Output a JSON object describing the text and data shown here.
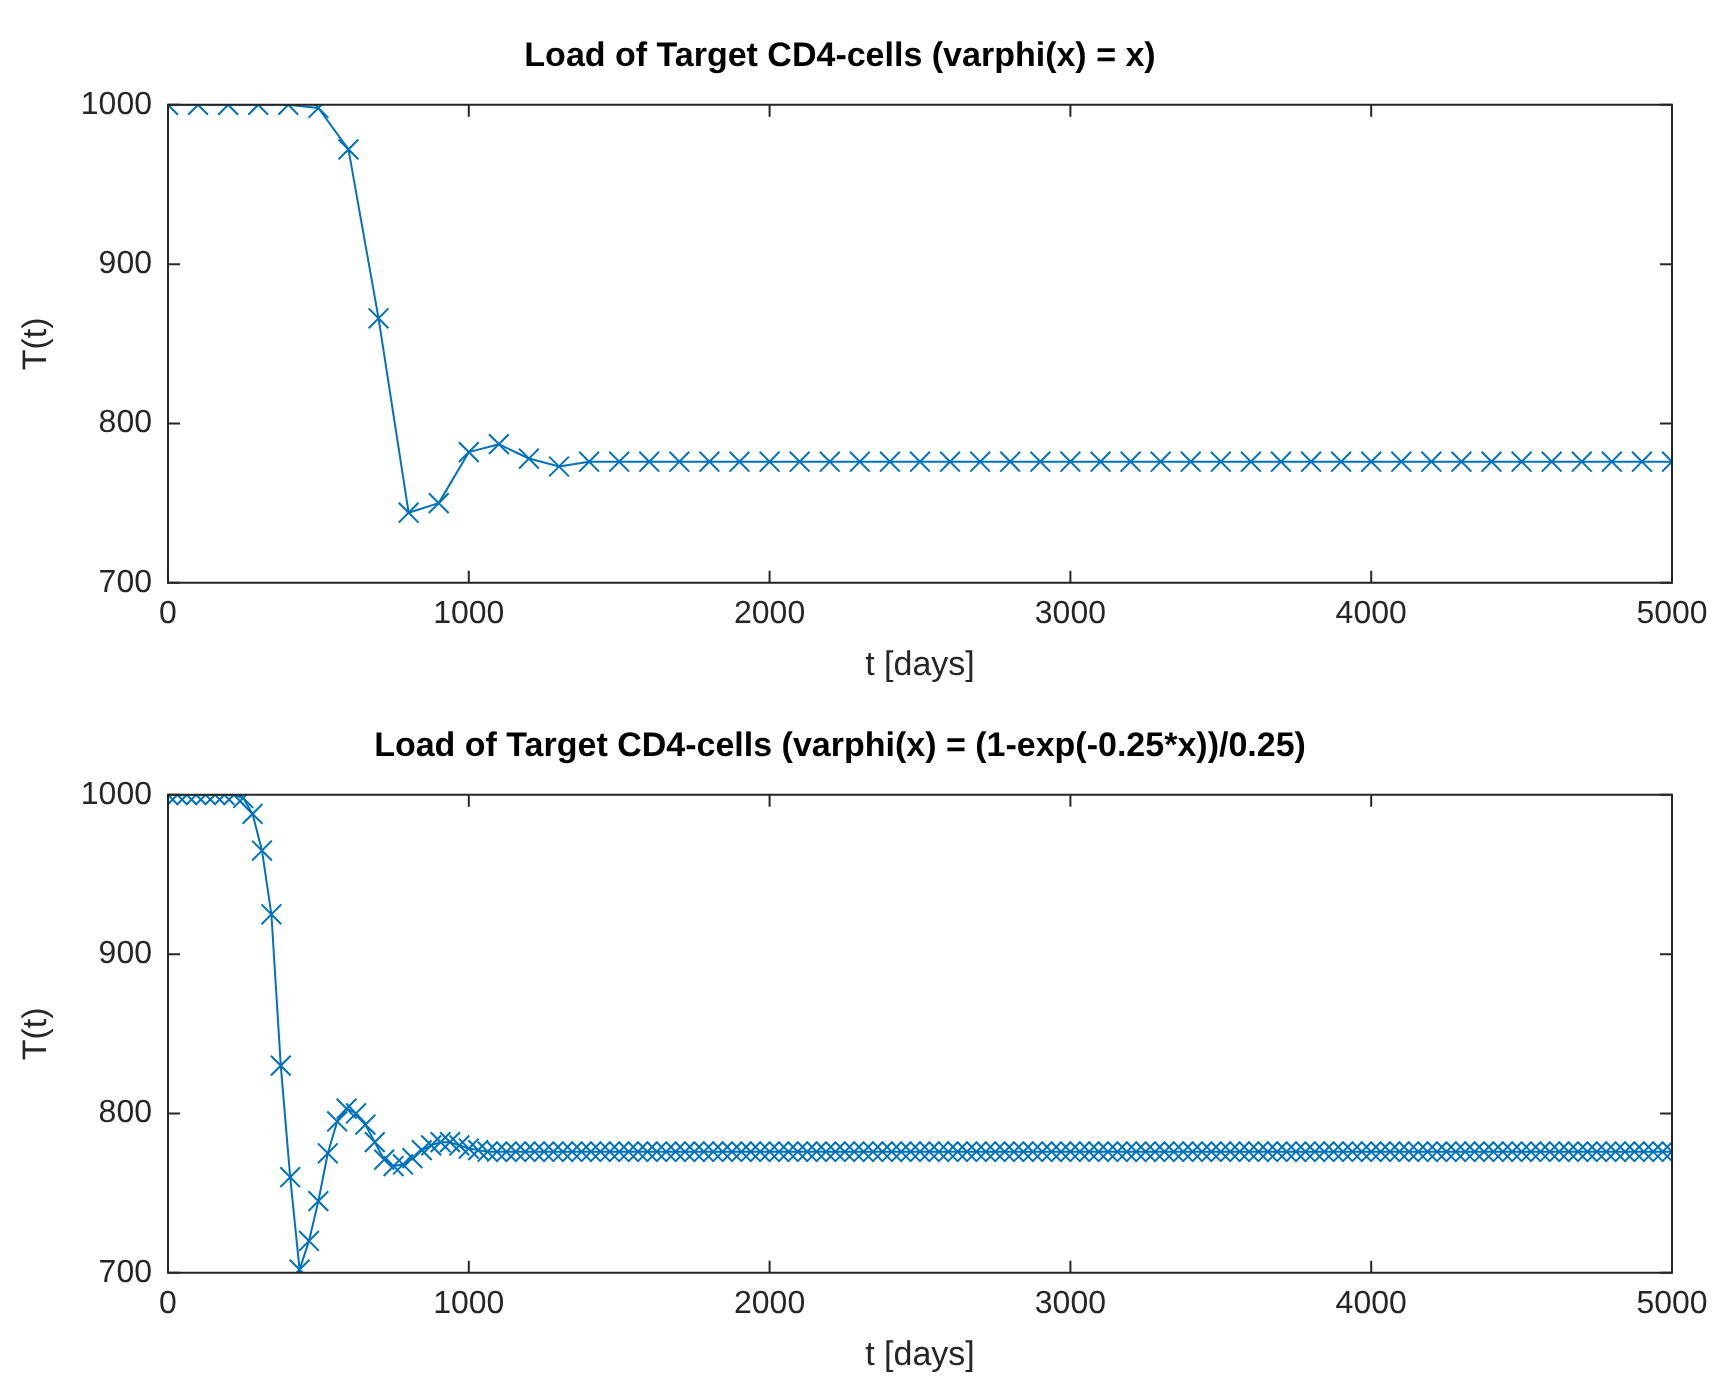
{
  "chart_data": [
    {
      "type": "line",
      "title": "Load of Target CD4-cells (varphi(x) = x)",
      "xlabel": "t [days]",
      "ylabel": "T(t)",
      "marker": "cross",
      "grid": false,
      "legend": false,
      "xlim": [
        0,
        5000
      ],
      "xticks": [
        0,
        1000,
        2000,
        3000,
        4000,
        5000
      ],
      "ylim": [
        700,
        1000
      ],
      "yticks": [
        700,
        800,
        900,
        1000
      ],
      "x": [
        0,
        100,
        200,
        300,
        400,
        500,
        600,
        700,
        800,
        900,
        1000,
        1100,
        1200,
        1300,
        1400,
        1500,
        1600,
        1700,
        1800,
        1900,
        2000,
        2100,
        2200,
        2300,
        2400,
        2500,
        2600,
        2700,
        2800,
        2900,
        3000,
        3100,
        3200,
        3300,
        3400,
        3500,
        3600,
        3700,
        3800,
        3900,
        4000,
        4100,
        4200,
        4300,
        4400,
        4500,
        4600,
        4700,
        4800,
        4900,
        5000
      ],
      "series": [
        {
          "color": "#0072bd",
          "values": [
            1000,
            1000,
            1000,
            1000,
            1000,
            998,
            972,
            866,
            744,
            750,
            782,
            787,
            778,
            773,
            776,
            776,
            776,
            776,
            776,
            776,
            776,
            776,
            776,
            776,
            776,
            776,
            776,
            776,
            776,
            776,
            776,
            776,
            776,
            776,
            776,
            776,
            776,
            776,
            776,
            776,
            776,
            776,
            776,
            776,
            776,
            776,
            776,
            776,
            776,
            776,
            776
          ]
        }
      ]
    },
    {
      "type": "line",
      "title": "Load of Target CD4-cells (varphi(x) = (1-exp(-0.25*x))/0.25)",
      "xlabel": "t [days]",
      "ylabel": "T(t)",
      "marker": "cross",
      "grid": false,
      "legend": false,
      "xlim": [
        0,
        5000
      ],
      "xticks": [
        0,
        1000,
        2000,
        3000,
        4000,
        5000
      ],
      "ylim": [
        700,
        1000
      ],
      "yticks": [
        700,
        800,
        900,
        1000
      ],
      "x": [
        0,
        31.25,
        62.5,
        93.75,
        125,
        156.25,
        187.5,
        218.75,
        250,
        281.25,
        312.5,
        343.75,
        375,
        406.25,
        437.5,
        468.75,
        500,
        531.25,
        562.5,
        593.75,
        625,
        656.25,
        687.5,
        718.75,
        750,
        781.25,
        812.5,
        843.75,
        875,
        906.25,
        937.5,
        968.75,
        1000,
        1031.25,
        1062.5,
        1093.75,
        1125,
        1156.25,
        1187.5,
        1218.75,
        1250,
        1281.25,
        1312.5,
        1343.75,
        1375,
        1406.25,
        1437.5,
        1468.75,
        1500,
        1531.25,
        1562.5,
        1593.75,
        1625,
        1656.25,
        1687.5,
        1718.75,
        1750,
        1781.25,
        1812.5,
        1843.75,
        1875,
        1906.25,
        1937.5,
        1968.75,
        2000,
        2031.25,
        2062.5,
        2093.75,
        2125,
        2156.25,
        2187.5,
        2218.75,
        2250,
        2281.25,
        2312.5,
        2343.75,
        2375,
        2406.25,
        2437.5,
        2468.75,
        2500,
        2531.25,
        2562.5,
        2593.75,
        2625,
        2656.25,
        2687.5,
        2718.75,
        2750,
        2781.25,
        2812.5,
        2843.75,
        2875,
        2906.25,
        2937.5,
        2968.75,
        3000,
        3031.25,
        3062.5,
        3093.75,
        3125,
        3156.25,
        3187.5,
        3218.75,
        3250,
        3281.25,
        3312.5,
        3343.75,
        3375,
        3406.25,
        3437.5,
        3468.75,
        3500,
        3531.25,
        3562.5,
        3593.75,
        3625,
        3656.25,
        3687.5,
        3718.75,
        3750,
        3781.25,
        3812.5,
        3843.75,
        3875,
        3906.25,
        3937.5,
        3968.75,
        4000,
        4031.25,
        4062.5,
        4093.75,
        4125,
        4156.25,
        4187.5,
        4218.75,
        4250,
        4281.25,
        4312.5,
        4343.75,
        4375,
        4406.25,
        4437.5,
        4468.75,
        4500,
        4531.25,
        4562.5,
        4593.75,
        4625,
        4656.25,
        4687.5,
        4718.75,
        4750,
        4781.25,
        4812.5,
        4843.75,
        4875,
        4906.25,
        4937.5,
        4968.75,
        5000
      ],
      "series": [
        {
          "color": "#0072bd",
          "values": [
            1000,
            1000,
            1000,
            1000,
            1000,
            1000,
            1000,
            1000,
            998,
            988,
            965,
            925,
            830,
            760,
            702,
            720,
            745,
            775,
            795,
            803,
            800,
            793,
            782,
            771,
            767,
            768,
            772,
            777,
            780,
            782,
            782,
            780,
            778,
            777,
            776,
            776,
            776,
            776,
            776,
            776,
            776,
            776,
            776,
            776,
            776,
            776,
            776,
            776,
            776,
            776,
            776,
            776,
            776,
            776,
            776,
            776,
            776,
            776,
            776,
            776,
            776,
            776,
            776,
            776,
            776,
            776,
            776,
            776,
            776,
            776,
            776,
            776,
            776,
            776,
            776,
            776,
            776,
            776,
            776,
            776,
            776,
            776,
            776,
            776,
            776,
            776,
            776,
            776,
            776,
            776,
            776,
            776,
            776,
            776,
            776,
            776,
            776,
            776,
            776,
            776,
            776,
            776,
            776,
            776,
            776,
            776,
            776,
            776,
            776,
            776,
            776,
            776,
            776,
            776,
            776,
            776,
            776,
            776,
            776,
            776,
            776,
            776,
            776,
            776,
            776,
            776,
            776,
            776,
            776,
            776,
            776,
            776,
            776,
            776,
            776,
            776,
            776,
            776,
            776,
            776,
            776,
            776,
            776,
            776,
            776,
            776,
            776,
            776,
            776,
            776,
            776,
            776,
            776,
            776,
            776,
            776,
            776,
            776,
            776,
            776,
            776
          ]
        }
      ]
    }
  ]
}
